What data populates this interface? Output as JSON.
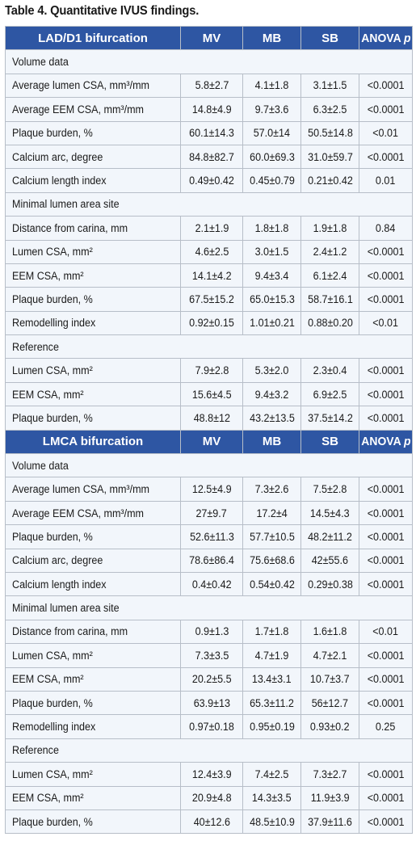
{
  "title": "Table 4. Quantitative IVUS findings.",
  "columns": [
    "MV",
    "MB",
    "SB",
    "ANOVA p"
  ],
  "sections": [
    {
      "header": "LAD/D1 bifurcation",
      "groups": [
        {
          "label": "Volume data",
          "rows": [
            {
              "label": "Average lumen CSA, mm³/mm",
              "mv": "5.8±2.7",
              "mb": "4.1±1.8",
              "sb": "3.1±1.5",
              "p": "<0.0001"
            },
            {
              "label": "Average EEM CSA, mm³/mm",
              "mv": "14.8±4.9",
              "mb": "9.7±3.6",
              "sb": "6.3±2.5",
              "p": "<0.0001"
            },
            {
              "label": "Plaque burden, %",
              "mv": "60.1±14.3",
              "mb": "57.0±14",
              "sb": "50.5±14.8",
              "p": "<0.01"
            },
            {
              "label": "Calcium arc, degree",
              "mv": "84.8±82.7",
              "mb": "60.0±69.3",
              "sb": "31.0±59.7",
              "p": "<0.0001"
            },
            {
              "label": "Calcium length index",
              "mv": "0.49±0.42",
              "mb": "0.45±0.79",
              "sb": "0.21±0.42",
              "p": "0.01"
            }
          ]
        },
        {
          "label": "Minimal lumen area site",
          "rows": [
            {
              "label": "Distance from carina, mm",
              "mv": "2.1±1.9",
              "mb": "1.8±1.8",
              "sb": "1.9±1.8",
              "p": "0.84"
            },
            {
              "label": "Lumen CSA, mm²",
              "mv": "4.6±2.5",
              "mb": "3.0±1.5",
              "sb": "2.4±1.2",
              "p": "<0.0001"
            },
            {
              "label": "EEM CSA, mm²",
              "mv": "14.1±4.2",
              "mb": "9.4±3.4",
              "sb": "6.1±2.4",
              "p": "<0.0001"
            },
            {
              "label": "Plaque burden, %",
              "mv": "67.5±15.2",
              "mb": "65.0±15.3",
              "sb": "58.7±16.1",
              "p": "<0.0001"
            },
            {
              "label": "Remodelling index",
              "mv": "0.92±0.15",
              "mb": "1.01±0.21",
              "sb": "0.88±0.20",
              "p": "<0.01"
            }
          ]
        },
        {
          "label": "Reference",
          "rows": [
            {
              "label": "Lumen CSA, mm²",
              "mv": "7.9±2.8",
              "mb": "5.3±2.0",
              "sb": "2.3±0.4",
              "p": "<0.0001"
            },
            {
              "label": "EEM CSA, mm²",
              "mv": "15.6±4.5",
              "mb": "9.4±3.2",
              "sb": "6.9±2.5",
              "p": "<0.0001"
            },
            {
              "label": "Plaque burden, %",
              "mv": "48.8±12",
              "mb": "43.2±13.5",
              "sb": "37.5±14.2",
              "p": "<0.0001"
            }
          ]
        }
      ]
    },
    {
      "header": "LMCA bifurcation",
      "groups": [
        {
          "label": "Volume data",
          "rows": [
            {
              "label": "Average lumen CSA, mm³/mm",
              "mv": "12.5±4.9",
              "mb": "7.3±2.6",
              "sb": "7.5±2.8",
              "p": "<0.0001"
            },
            {
              "label": "Average EEM CSA, mm³/mm",
              "mv": "27±9.7",
              "mb": "17.2±4",
              "sb": "14.5±4.3",
              "p": "<0.0001"
            },
            {
              "label": "Plaque burden, %",
              "mv": "52.6±11.3",
              "mb": "57.7±10.5",
              "sb": "48.2±11.2",
              "p": "<0.0001"
            },
            {
              "label": "Calcium arc, degree",
              "mv": "78.6±86.4",
              "mb": "75.6±68.6",
              "sb": "42±55.6",
              "p": "<0.0001"
            },
            {
              "label": "Calcium length index",
              "mv": "0.4±0.42",
              "mb": "0.54±0.42",
              "sb": "0.29±0.38",
              "p": "<0.0001"
            }
          ]
        },
        {
          "label": "Minimal lumen area site",
          "rows": [
            {
              "label": "Distance from carina, mm",
              "mv": "0.9±1.3",
              "mb": "1.7±1.8",
              "sb": "1.6±1.8",
              "p": "<0.01"
            },
            {
              "label": "Lumen CSA, mm²",
              "mv": "7.3±3.5",
              "mb": "4.7±1.9",
              "sb": "4.7±2.1",
              "p": "<0.0001"
            },
            {
              "label": "EEM CSA, mm²",
              "mv": "20.2±5.5",
              "mb": "13.4±3.1",
              "sb": "10.7±3.7",
              "p": "<0.0001"
            },
            {
              "label": "Plaque burden, %",
              "mv": "63.9±13",
              "mb": "65.3±11.2",
              "sb": "56±12.7",
              "p": "<0.0001"
            },
            {
              "label": "Remodelling index",
              "mv": "0.97±0.18",
              "mb": "0.95±0.19",
              "sb": "0.93±0.2",
              "p": "0.25"
            }
          ]
        },
        {
          "label": "Reference",
          "rows": [
            {
              "label": "Lumen CSA, mm²",
              "mv": "12.4±3.9",
              "mb": "7.4±2.5",
              "sb": "7.3±2.7",
              "p": "<0.0001"
            },
            {
              "label": "EEM CSA, mm²",
              "mv": "20.9±4.8",
              "mb": "14.3±3.5",
              "sb": "11.9±3.9",
              "p": "<0.0001"
            },
            {
              "label": "Plaque burden, %",
              "mv": "40±12.6",
              "mb": "48.5±10.9",
              "sb": "37.9±11.6",
              "p": "<0.0001"
            }
          ]
        }
      ]
    }
  ],
  "colors": {
    "header_bg": "#2e56a3",
    "header_text": "#ffffff",
    "cell_bg": "#f2f6fb",
    "border": "#b7bec8"
  }
}
